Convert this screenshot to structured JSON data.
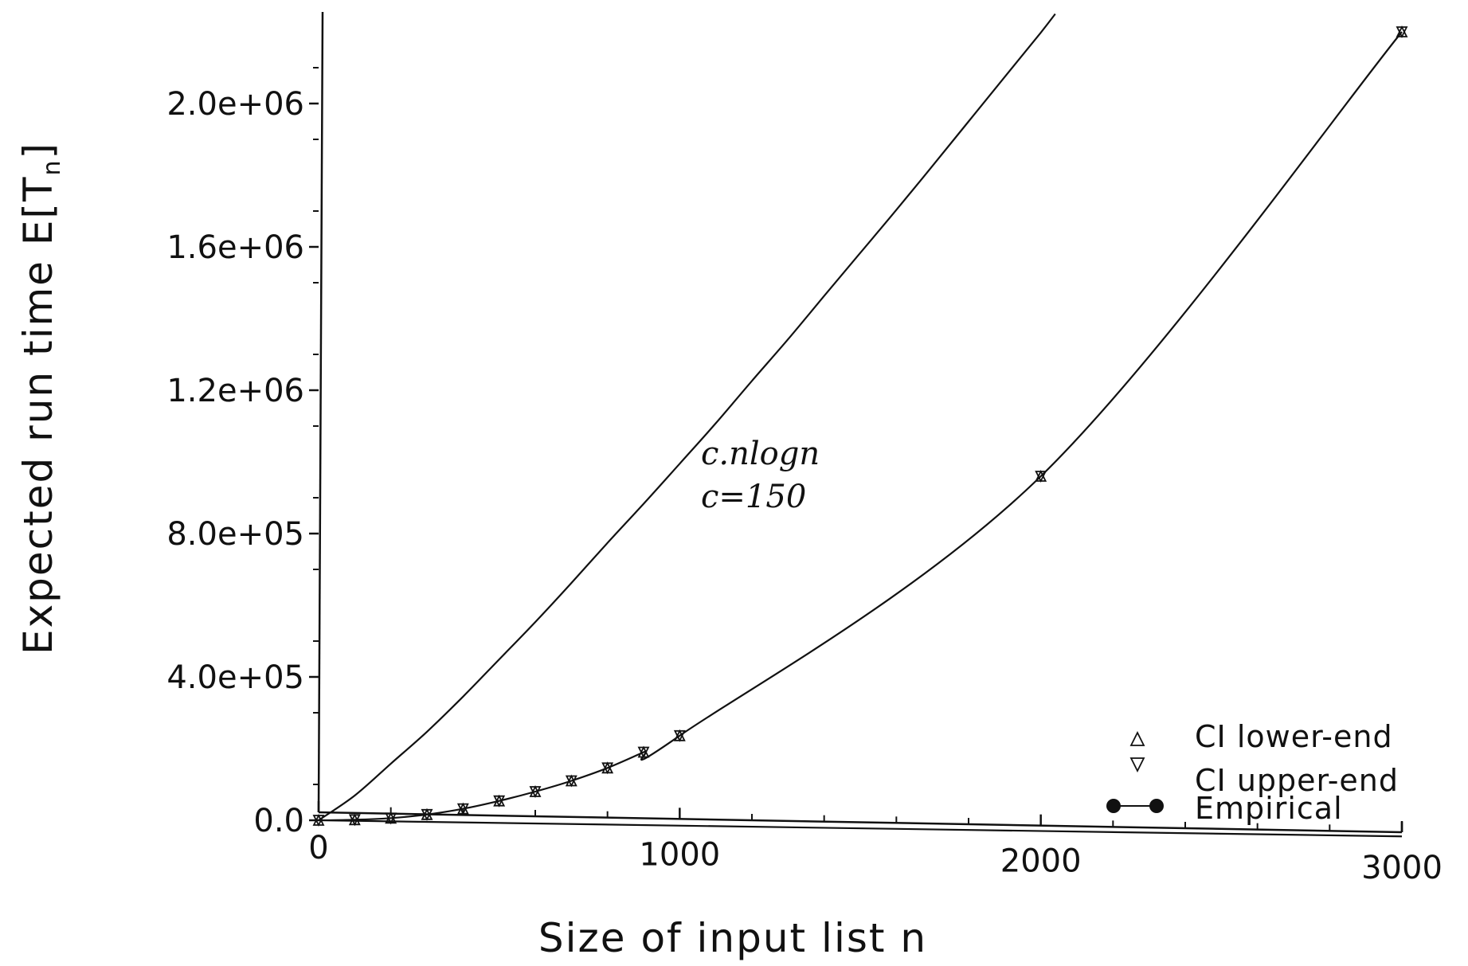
{
  "chart_data": {
    "type": "line",
    "title": "",
    "xlabel": "Size of input list n",
    "ylabel": "Expected run time E[T",
    "ylabel_subscript": "n",
    "ylabel_close": "]",
    "xlim": [
      0,
      3000
    ],
    "ylim": [
      0,
      2200000
    ],
    "x_ticks": [
      {
        "value": 0,
        "label": "0"
      },
      {
        "value": 1000,
        "label": "1000"
      },
      {
        "value": 2000,
        "label": "2000"
      },
      {
        "value": 3000,
        "label": "3000"
      }
    ],
    "y_ticks": [
      {
        "value": 0,
        "label": "0.0"
      },
      {
        "value": 400000,
        "label": "4.0e+05"
      },
      {
        "value": 800000,
        "label": "8.0e+05"
      },
      {
        "value": 1200000,
        "label": "1.2e+06"
      },
      {
        "value": 1600000,
        "label": "1.6e+06"
      },
      {
        "value": 2000000,
        "label": "2.0e+06"
      }
    ],
    "grid": false,
    "legend_position": "bottom-right",
    "legend": [
      {
        "symbol": "triangle-up",
        "label": "CI lower-end"
      },
      {
        "symbol": "triangle-down",
        "label": "CI upper-end"
      },
      {
        "symbol": "filled-circle-line",
        "label": "Empirical"
      }
    ],
    "annotation": {
      "line1": "c.nlogn",
      "line2": "c=150"
    },
    "series": [
      {
        "kind": "curve",
        "x": [
          0,
          100,
          200,
          300,
          400,
          500,
          600,
          700,
          800,
          900,
          1000,
          1100,
          1200,
          1300,
          1400,
          1500,
          1600,
          1700,
          1800,
          1900,
          2000,
          2040
        ],
        "y": [
          0,
          69000,
          158000,
          247000,
          345000,
          449000,
          553000,
          662000,
          774000,
          883000,
          995000,
          1108000,
          1226000,
          1342000,
          1463000,
          1583000,
          1703000,
          1826000,
          1950000,
          2074000,
          2198000,
          2250000
        ]
      },
      {
        "kind": "empirical",
        "x": [
          0,
          100,
          200,
          300,
          400,
          500,
          600,
          700,
          800,
          900,
          1000,
          2000,
          3000
        ],
        "y": [
          0,
          1500,
          6000,
          16000,
          32000,
          54000,
          80000,
          110000,
          146000,
          190000,
          236000,
          960000,
          2200000
        ]
      },
      {
        "kind": "baseline",
        "x": [
          0,
          3000
        ],
        "y": [
          0,
          -45000
        ]
      }
    ]
  }
}
